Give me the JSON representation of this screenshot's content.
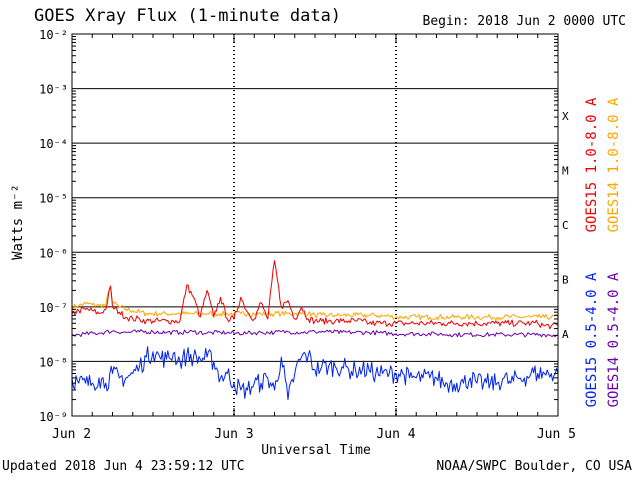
{
  "header": {
    "title": "GOES Xray Flux (1-minute data)",
    "begin": "Begin:  2018 Jun 2 0000 UTC"
  },
  "footer": {
    "updated": "Updated 2018 Jun  4 23:59:12 UTC",
    "credit": "NOAA/SWPC Boulder, CO USA"
  },
  "colors": {
    "goes15_long": "#ee0000",
    "goes14_long": "#ffa500",
    "goes15_short": "#0022ee",
    "goes14_short": "#6a00a8",
    "frame": "#000000"
  },
  "chart_data": {
    "type": "line",
    "title": "GOES Xray Flux (1-minute data)",
    "xlabel": "Universal Time",
    "ylabel": "Watts m⁻²",
    "y_scale": "log",
    "ylim": [
      1e-09,
      0.01
    ],
    "xlim": [
      0,
      72
    ],
    "x_unit": "hours since 2018 Jun 2 0000 UTC",
    "x_ticks": [
      {
        "x": 0,
        "label": "Jun 2"
      },
      {
        "x": 24,
        "label": "Jun 3"
      },
      {
        "x": 48,
        "label": "Jun 4"
      },
      {
        "x": 72,
        "label": "Jun 5"
      }
    ],
    "y_ticks": [
      {
        "value": 1e-09,
        "label": "10⁻⁹"
      },
      {
        "value": 1e-08,
        "label": "10⁻⁸"
      },
      {
        "value": 1e-07,
        "label": "10⁻⁷"
      },
      {
        "value": 1e-06,
        "label": "10⁻⁶"
      },
      {
        "value": 1e-05,
        "label": "10⁻⁵"
      },
      {
        "value": 0.0001,
        "label": "10⁻⁴"
      },
      {
        "value": 0.001,
        "label": "10⁻³"
      },
      {
        "value": 0.01,
        "label": "10⁻²"
      }
    ],
    "flare_classes": [
      {
        "label": "A",
        "value": 3.16e-08
      },
      {
        "label": "B",
        "value": 3.16e-07
      },
      {
        "label": "C",
        "value": 3.16e-06
      },
      {
        "label": "M",
        "value": 3.16e-05
      },
      {
        "label": "X",
        "value": 0.000316
      }
    ],
    "grid": "horizontal at decades",
    "legend": "right, vertical",
    "series": [
      {
        "name": "GOES14 1.0-8.0 A",
        "color": "#ffa500",
        "x": [
          0,
          1,
          2,
          3,
          4,
          5,
          5.7,
          6,
          7,
          8,
          9,
          10,
          11,
          12,
          13,
          14,
          15,
          16,
          17,
          18,
          19,
          20,
          21,
          22,
          23,
          24,
          25,
          26,
          27,
          28,
          29,
          30,
          31,
          32,
          33,
          34,
          35,
          36,
          37,
          38,
          39,
          40,
          41,
          42,
          43,
          44,
          45,
          46,
          47,
          48,
          49,
          50,
          51,
          52,
          53,
          54,
          55,
          56,
          57,
          58,
          59,
          60,
          61,
          62,
          63,
          64,
          65,
          66,
          67,
          68,
          69,
          70,
          71,
          72
        ],
        "values": [
          1e-07,
          1.05e-07,
          1.15e-07,
          1.1e-07,
          1.05e-07,
          1.1e-07,
          2.4e-07,
          1.2e-07,
          1e-07,
          9e-08,
          8.5e-08,
          8e-08,
          7.5e-08,
          7.5e-08,
          7.5e-08,
          7.5e-08,
          7.5e-08,
          7.5e-08,
          7.5e-08,
          7.5e-08,
          7.5e-08,
          7.5e-08,
          7.5e-08,
          7.5e-08,
          7.5e-08,
          7.5e-08,
          7.5e-08,
          7.5e-08,
          7.5e-08,
          7.5e-08,
          7.5e-08,
          7.5e-08,
          7.5e-08,
          7.5e-08,
          7.5e-08,
          7.5e-08,
          7.5e-08,
          7e-08,
          7e-08,
          7e-08,
          7e-08,
          7e-08,
          7e-08,
          7e-08,
          7e-08,
          7e-08,
          7e-08,
          6.8e-08,
          6.8e-08,
          6.5e-08,
          6.5e-08,
          6.5e-08,
          6.5e-08,
          6.5e-08,
          6.5e-08,
          6.5e-08,
          6.5e-08,
          6.5e-08,
          6.5e-08,
          6.5e-08,
          6.5e-08,
          6.5e-08,
          6.5e-08,
          6.5e-08,
          6.5e-08,
          6.5e-08,
          6.5e-08,
          6.5e-08,
          6.5e-08,
          6.5e-08,
          6.5e-08,
          6.5e-08,
          6.5e-08,
          6.5e-08
        ]
      },
      {
        "name": "GOES15 1.0-8.0 A",
        "color": "#ee0000",
        "x": [
          0,
          1,
          2,
          3,
          4,
          5,
          5.7,
          6,
          7,
          8,
          9,
          10,
          11,
          12,
          13,
          14,
          15,
          16,
          17,
          18,
          19,
          20,
          21,
          22,
          23,
          24,
          25,
          26,
          27,
          28,
          29,
          30,
          31,
          32,
          33,
          34,
          35,
          36,
          37,
          38,
          39,
          40,
          41,
          42,
          43,
          44,
          45,
          46,
          47,
          48,
          49,
          50,
          51,
          52,
          53,
          54,
          55,
          56,
          57,
          58,
          59,
          60,
          61,
          62,
          63,
          64,
          65,
          66,
          67,
          68,
          69,
          70,
          71,
          72
        ],
        "values": [
          7.5e-08,
          8.5e-08,
          9e-08,
          8.5e-08,
          7.5e-08,
          9e-08,
          2.4e-07,
          1e-07,
          8e-08,
          6.5e-08,
          6e-08,
          6e-08,
          5.5e-08,
          5.5e-08,
          5.5e-08,
          5.5e-08,
          5.5e-08,
          5.5e-08,
          2.5e-07,
          1.5e-07,
          6.5e-08,
          2e-07,
          6.5e-08,
          1.5e-07,
          6e-08,
          6e-08,
          1.5e-07,
          8e-08,
          6e-08,
          1.2e-07,
          6e-08,
          7e-07,
          1e-07,
          1.3e-07,
          6e-08,
          1e-07,
          6e-08,
          5.5e-08,
          5.5e-08,
          5.5e-08,
          5.5e-08,
          5.5e-08,
          5.5e-08,
          5.5e-08,
          5.5e-08,
          5e-08,
          5e-08,
          5e-08,
          5e-08,
          5e-08,
          5e-08,
          5e-08,
          5e-08,
          5e-08,
          5e-08,
          5e-08,
          5e-08,
          5e-08,
          5e-08,
          5e-08,
          5e-08,
          5e-08,
          5e-08,
          5e-08,
          5e-08,
          5e-08,
          5e-08,
          5e-08,
          5e-08,
          5e-08,
          5e-08,
          4.5e-08,
          4.5e-08,
          4.5e-08
        ]
      },
      {
        "name": "GOES14 0.5-4.0 A",
        "color": "#6a00a8",
        "x": [
          0,
          2,
          4,
          6,
          8,
          10,
          12,
          14,
          16,
          18,
          20,
          22,
          24,
          26,
          28,
          30,
          32,
          34,
          36,
          38,
          40,
          42,
          44,
          46,
          48,
          50,
          52,
          54,
          56,
          58,
          60,
          62,
          64,
          66,
          68,
          70,
          72
        ],
        "values": [
          3e-08,
          3.2e-08,
          3.3e-08,
          3.6e-08,
          3.4e-08,
          3.5e-08,
          3.5e-08,
          3.4e-08,
          3.4e-08,
          3.5e-08,
          3.3e-08,
          3.4e-08,
          3.3e-08,
          3.3e-08,
          3.4e-08,
          3.4e-08,
          3.5e-08,
          3.4e-08,
          3.5e-08,
          3.5e-08,
          3.4e-08,
          3.4e-08,
          3.4e-08,
          3.3e-08,
          3.2e-08,
          3.2e-08,
          3.2e-08,
          3.2e-08,
          3.1e-08,
          3.1e-08,
          3.1e-08,
          3.1e-08,
          3.1e-08,
          3.1e-08,
          3.1e-08,
          3.1e-08,
          3e-08
        ]
      },
      {
        "name": "GOES15 0.5-4.0 A",
        "color": "#0022ee",
        "x": [
          0,
          1,
          2,
          3,
          4,
          5,
          6,
          7,
          8,
          9,
          10,
          11,
          12,
          13,
          14,
          15,
          16,
          17,
          18,
          19,
          20,
          21,
          22,
          23,
          24,
          25,
          26,
          27,
          28,
          29,
          30,
          31,
          32,
          33,
          34,
          35,
          36,
          37,
          38,
          39,
          40,
          41,
          42,
          43,
          44,
          45,
          46,
          47,
          48,
          49,
          50,
          51,
          52,
          53,
          54,
          55,
          56,
          57,
          58,
          59,
          60,
          61,
          62,
          63,
          64,
          65,
          66,
          67,
          68,
          69,
          70,
          71,
          72
        ],
        "values": [
          5e-09,
          4e-09,
          4e-09,
          4e-09,
          5e-09,
          4e-09,
          6e-09,
          5e-09,
          5e-09,
          6e-09,
          8e-09,
          1.2e-08,
          1.5e-08,
          1.2e-08,
          1.1e-08,
          1.4e-08,
          1e-08,
          1.3e-08,
          1.2e-08,
          1.1e-08,
          1.2e-08,
          1e-08,
          5e-09,
          6e-09,
          4e-09,
          3e-09,
          3e-09,
          4e-09,
          4e-09,
          5e-09,
          3e-09,
          1.2e-08,
          2e-09,
          6e-09,
          1.2e-08,
          1.3e-08,
          7e-09,
          8e-09,
          8e-09,
          8e-09,
          8e-09,
          7e-09,
          7e-09,
          7e-09,
          7e-09,
          6e-09,
          6e-09,
          6e-09,
          6e-09,
          6e-09,
          5e-09,
          5e-09,
          5e-09,
          5e-09,
          5e-09,
          4e-09,
          4e-09,
          4e-09,
          4e-09,
          5e-09,
          4e-09,
          4e-09,
          4e-09,
          4e-09,
          5e-09,
          4e-09,
          5e-09,
          5e-09,
          6e-09,
          6e-09,
          6e-09,
          6e-09,
          6e-09
        ]
      }
    ]
  }
}
